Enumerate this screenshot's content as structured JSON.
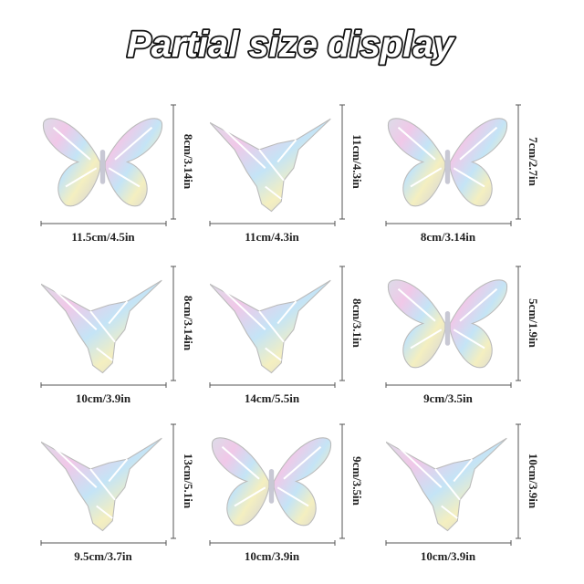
{
  "title": "Partial size display",
  "items": [
    {
      "width": "11.5cm/4.5in",
      "height": "8cm/3.14in"
    },
    {
      "width": "11cm/4.3in",
      "height": "11cm/4.3in"
    },
    {
      "width": "8cm/3.14in",
      "height": "7cm/2.7in"
    },
    {
      "width": "10cm/3.9in",
      "height": "8cm/3.14in"
    },
    {
      "width": "14cm/5.5in",
      "height": "8cm/3.1in"
    },
    {
      "width": "9cm/3.5in",
      "height": "5cm/1.9in"
    },
    {
      "width": "9.5cm/3.7in",
      "height": "13cm/5.1in"
    },
    {
      "width": "10cm/3.9in",
      "height": "9cm/3.5in"
    },
    {
      "width": "10cm/3.9in",
      "height": "10cm/3.9in"
    }
  ]
}
